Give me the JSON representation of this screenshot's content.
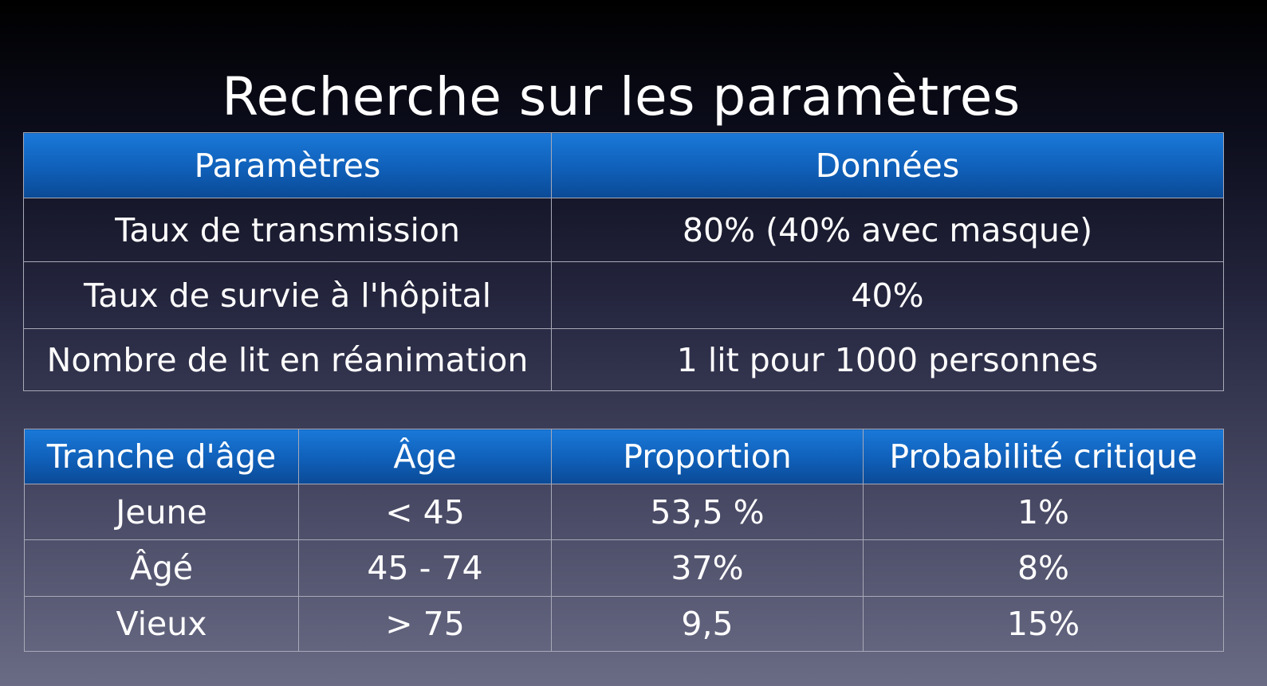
{
  "slide": {
    "title": "Recherche sur les paramètres"
  },
  "params_table": {
    "headers": [
      "Paramètres",
      "Données"
    ],
    "rows": [
      [
        "Taux de transmission",
        "80% (40% avec masque)"
      ],
      [
        "Taux de survie à l'hôpital",
        "40%"
      ],
      [
        "Nombre de lit en réanimation",
        "1 lit pour 1000 personnes"
      ]
    ]
  },
  "age_table": {
    "headers": [
      "Tranche d'âge",
      "Âge",
      "Proportion",
      "Probabilité critique"
    ],
    "rows": [
      [
        "Jeune",
        "< 45",
        "53,5 %",
        "1%"
      ],
      [
        "Âgé",
        "45 - 74",
        "37%",
        "8%"
      ],
      [
        "Vieux",
        "> 75",
        "9,5",
        "15%"
      ]
    ]
  },
  "colors": {
    "header_blue": "#1565c0",
    "border": "#a8a9b8",
    "text": "#ffffff"
  }
}
